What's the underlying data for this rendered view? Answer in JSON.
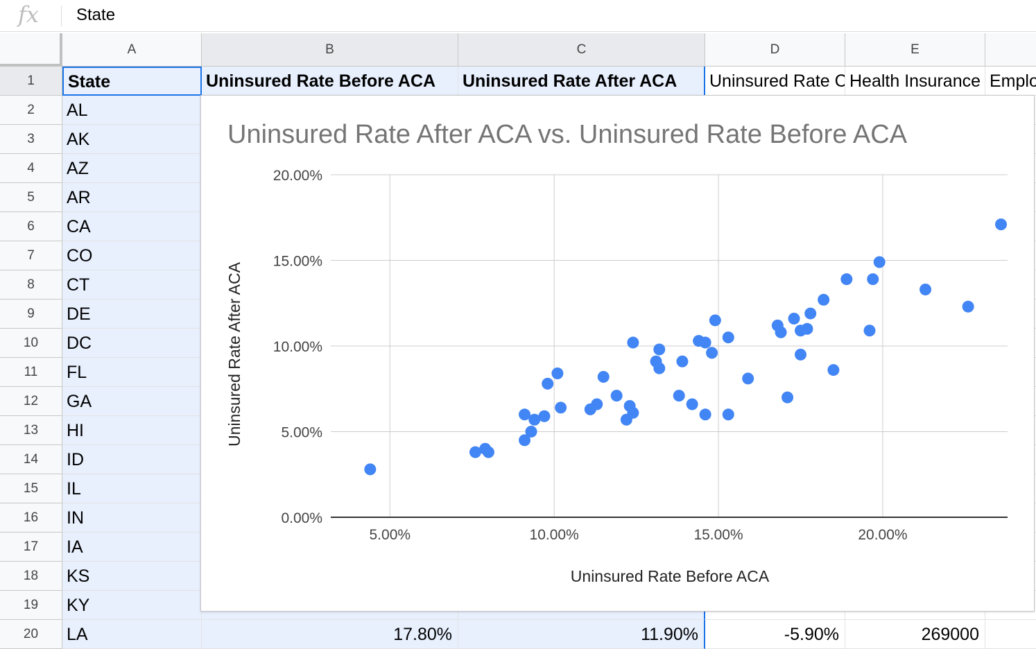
{
  "formula_bar": {
    "fx_label": "fx",
    "content": "State"
  },
  "columns": [
    "A",
    "B",
    "C",
    "D",
    "E"
  ],
  "header_row": {
    "a": "State",
    "b": "Uninsured Rate Before ACA",
    "c": "Uninsured Rate After ACA",
    "d": "Uninsured Rate Change",
    "e": "Health Insurance",
    "f": "Employer"
  },
  "rows": [
    {
      "num": "1"
    },
    {
      "num": "2",
      "state": "AL"
    },
    {
      "num": "3",
      "state": "AK"
    },
    {
      "num": "4",
      "state": "AZ"
    },
    {
      "num": "5",
      "state": "AR"
    },
    {
      "num": "6",
      "state": "CA"
    },
    {
      "num": "7",
      "state": "CO"
    },
    {
      "num": "8",
      "state": "CT"
    },
    {
      "num": "9",
      "state": "DE"
    },
    {
      "num": "10",
      "state": "DC"
    },
    {
      "num": "11",
      "state": "FL"
    },
    {
      "num": "12",
      "state": "GA"
    },
    {
      "num": "13",
      "state": "HI"
    },
    {
      "num": "14",
      "state": "ID"
    },
    {
      "num": "15",
      "state": "IL"
    },
    {
      "num": "16",
      "state": "IN"
    },
    {
      "num": "17",
      "state": "IA"
    },
    {
      "num": "18",
      "state": "KS"
    },
    {
      "num": "19",
      "state": "KY"
    },
    {
      "num": "20",
      "state": "LA"
    }
  ],
  "row20": {
    "b": "17.80%",
    "c": "11.90%",
    "d": "-5.90%",
    "e": "269000"
  },
  "colors": {
    "point": "#4285f4",
    "selection_border": "#1a73e8",
    "selection_fill": "#e8f0fe"
  },
  "chart_data": {
    "type": "scatter",
    "title": "Uninsured Rate After ACA vs. Uninsured Rate Before ACA",
    "xlabel": "Uninsured Rate Before ACA",
    "ylabel": "Uninsured Rate After ACA",
    "xlim": [
      0.032,
      0.238
    ],
    "ylim": [
      0,
      0.2
    ],
    "xticks": [
      0.05,
      0.1,
      0.15,
      0.2
    ],
    "xtick_labels": [
      "5.00%",
      "10.00%",
      "15.00%",
      "20.00%"
    ],
    "yticks": [
      0,
      0.05,
      0.1,
      0.15,
      0.2
    ],
    "ytick_labels": [
      "0.00%",
      "5.00%",
      "10.00%",
      "15.00%",
      "20.00%"
    ],
    "grid": true,
    "legend": "none",
    "points": [
      [
        0.044,
        0.028
      ],
      [
        0.076,
        0.038
      ],
      [
        0.079,
        0.04
      ],
      [
        0.08,
        0.038
      ],
      [
        0.091,
        0.06
      ],
      [
        0.091,
        0.045
      ],
      [
        0.093,
        0.05
      ],
      [
        0.094,
        0.057
      ],
      [
        0.097,
        0.059
      ],
      [
        0.098,
        0.078
      ],
      [
        0.101,
        0.084
      ],
      [
        0.102,
        0.064
      ],
      [
        0.111,
        0.063
      ],
      [
        0.113,
        0.066
      ],
      [
        0.115,
        0.082
      ],
      [
        0.119,
        0.071
      ],
      [
        0.122,
        0.057
      ],
      [
        0.123,
        0.065
      ],
      [
        0.124,
        0.061
      ],
      [
        0.124,
        0.102
      ],
      [
        0.131,
        0.091
      ],
      [
        0.132,
        0.087
      ],
      [
        0.132,
        0.098
      ],
      [
        0.138,
        0.071
      ],
      [
        0.139,
        0.091
      ],
      [
        0.142,
        0.066
      ],
      [
        0.144,
        0.103
      ],
      [
        0.146,
        0.06
      ],
      [
        0.146,
        0.102
      ],
      [
        0.148,
        0.096
      ],
      [
        0.149,
        0.115
      ],
      [
        0.153,
        0.105
      ],
      [
        0.153,
        0.06
      ],
      [
        0.159,
        0.081
      ],
      [
        0.168,
        0.112
      ],
      [
        0.169,
        0.108
      ],
      [
        0.171,
        0.07
      ],
      [
        0.173,
        0.116
      ],
      [
        0.175,
        0.109
      ],
      [
        0.175,
        0.095
      ],
      [
        0.177,
        0.11
      ],
      [
        0.178,
        0.119
      ],
      [
        0.182,
        0.127
      ],
      [
        0.185,
        0.086
      ],
      [
        0.189,
        0.139
      ],
      [
        0.196,
        0.109
      ],
      [
        0.197,
        0.139
      ],
      [
        0.199,
        0.149
      ],
      [
        0.213,
        0.133
      ],
      [
        0.226,
        0.123
      ],
      [
        0.236,
        0.171
      ]
    ]
  }
}
